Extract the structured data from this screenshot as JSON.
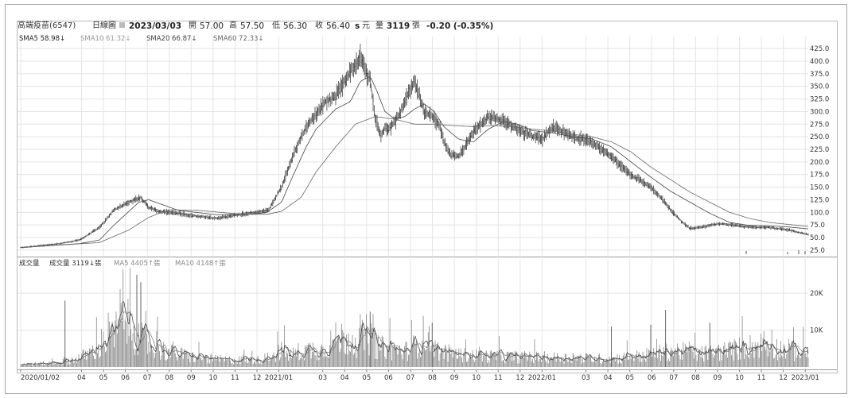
{
  "header": {
    "stock": "高端疫苗(6547)",
    "period": "日線圖",
    "date": "2023/03/03",
    "open_label": "開",
    "open": "57.00",
    "high_label": "高",
    "high": "57.50",
    "low_label": "低",
    "low": "56.30",
    "close_label": "收",
    "close": "56.40",
    "currency": "元",
    "volume_label": "量",
    "volume": "3119",
    "volume_unit": "張",
    "change": "-0.20 (-0.35%)"
  },
  "colors": {
    "sma5": "#222222",
    "sma10": "#999999",
    "sma20": "#444444",
    "sma60": "#666666",
    "candle": "#222222",
    "volume_bar": "#888888",
    "grid": "#e4e4e4"
  },
  "ma_legend": [
    {
      "label": "SMA5 58.98↓",
      "color": "#222222"
    },
    {
      "label": "SMA10 61.32↓",
      "color": "#999999"
    },
    {
      "label": "SMA20 66.87↓",
      "color": "#444444"
    },
    {
      "label": "SMA60 72.33↓",
      "color": "#666666"
    }
  ],
  "volume_legend": [
    {
      "label": "成交量",
      "color": "#333333"
    },
    {
      "label": "成交量 3119↓張",
      "color": "#333333"
    },
    {
      "label": "MA5 4405↑張",
      "color": "#888888"
    },
    {
      "label": "MA10 4148↑張",
      "color": "#888888"
    }
  ],
  "chart_data": [
    {
      "type": "line",
      "title": "",
      "ylim": [
        20,
        430
      ],
      "y_ticks": [
        "425.0",
        "400.0",
        "375.0",
        "350.0",
        "325.0",
        "300.0",
        "275.0",
        "250.0",
        "225.0",
        "200.0",
        "175.0",
        "150.0",
        "125.0",
        "100.0",
        "75.0",
        "50.0",
        "25.0"
      ],
      "y_tick_values": [
        425,
        400,
        375,
        350,
        325,
        300,
        275,
        250,
        225,
        200,
        175,
        150,
        125,
        100,
        75,
        50,
        25
      ],
      "x_labels": [
        "2020/01/02",
        "04",
        "05",
        "06",
        "07",
        "08",
        "09",
        "10",
        "11",
        "12",
        "2021/01",
        "03",
        "04",
        "05",
        "06",
        "07",
        "08",
        "09",
        "10",
        "11",
        "12",
        "2022/01",
        "03",
        "04",
        "05",
        "06",
        "07",
        "08",
        "09",
        "10",
        "11",
        "12",
        "2023/01"
      ],
      "x_label_pos": [
        0,
        61,
        83,
        105,
        127,
        149,
        171,
        193,
        215,
        237,
        259,
        303,
        325,
        347,
        369,
        391,
        413,
        435,
        457,
        479,
        501,
        523,
        567,
        589,
        611,
        633,
        655,
        677,
        699,
        721,
        743,
        765,
        787
      ],
      "grid": true,
      "total_days": 800,
      "price_series": {
        "name": "close",
        "x": [
          0,
          40,
          60,
          80,
          95,
          105,
          115,
          122,
          130,
          140,
          150,
          160,
          180,
          200,
          220,
          240,
          252,
          265,
          276,
          285,
          292,
          298,
          304,
          310,
          320,
          335,
          345,
          355,
          360,
          366,
          370,
          374,
          380,
          386,
          392,
          400,
          410,
          418,
          425,
          430,
          436,
          445,
          460,
          475,
          490,
          505,
          520,
          530,
          540,
          548,
          555,
          565,
          580,
          600,
          620,
          640,
          650,
          658,
          665,
          672,
          680,
          690,
          700,
          710,
          720,
          735,
          750,
          765,
          780,
          790,
          800
        ],
        "values": [
          30,
          38,
          45,
          70,
          105,
          115,
          125,
          130,
          110,
          102,
          100,
          98,
          92,
          88,
          95,
          100,
          105,
          150,
          210,
          250,
          275,
          290,
          305,
          320,
          330,
          380,
          410,
          360,
          290,
          250,
          270,
          265,
          280,
          300,
          330,
          360,
          300,
          290,
          275,
          240,
          215,
          210,
          260,
          290,
          280,
          265,
          250,
          245,
          270,
          262,
          255,
          248,
          240,
          210,
          175,
          150,
          130,
          110,
          95,
          80,
          68,
          70,
          74,
          78,
          75,
          72,
          70,
          69,
          65,
          60,
          56
        ]
      },
      "sma_series": [
        {
          "name": "SMA20",
          "x": [
            0,
            60,
            80,
            95,
            110,
            120,
            130,
            140,
            160,
            200,
            240,
            250,
            265,
            276,
            290,
            300,
            310,
            320,
            335,
            345,
            355,
            362,
            370,
            380,
            390,
            400,
            410,
            420,
            430,
            445,
            460,
            475,
            490,
            505,
            520,
            540,
            560,
            580,
            600,
            620,
            640,
            660,
            680,
            700,
            720,
            740,
            760,
            780,
            800
          ],
          "values": [
            30,
            38,
            45,
            75,
            102,
            120,
            125,
            118,
            104,
            95,
            97,
            100,
            120,
            170,
            230,
            265,
            285,
            305,
            320,
            360,
            370,
            340,
            300,
            285,
            290,
            305,
            315,
            300,
            270,
            245,
            240,
            265,
            280,
            275,
            262,
            258,
            250,
            246,
            230,
            200,
            170,
            142,
            120,
            98,
            80,
            74,
            73,
            71,
            67
          ]
        },
        {
          "name": "SMA60",
          "x": [
            0,
            80,
            110,
            130,
            150,
            180,
            220,
            250,
            265,
            285,
            300,
            320,
            340,
            360,
            380,
            400,
            420,
            440,
            460,
            480,
            500,
            520,
            540,
            560,
            580,
            600,
            620,
            640,
            660,
            680,
            700,
            720,
            740,
            760,
            780,
            800
          ],
          "values": [
            30,
            40,
            65,
            90,
            105,
            104,
            97,
            96,
            102,
            130,
            180,
            230,
            275,
            290,
            285,
            275,
            275,
            272,
            270,
            272,
            270,
            265,
            262,
            255,
            250,
            240,
            220,
            190,
            165,
            140,
            120,
            100,
            88,
            80,
            76,
            72
          ]
        }
      ]
    },
    {
      "type": "bar",
      "title": "成交量",
      "ylim": [
        0,
        28000
      ],
      "y_ticks": [
        "20K",
        "10K"
      ],
      "y_tick_values": [
        20000,
        10000
      ],
      "volume_profile": {
        "x": [
          0,
          20,
          40,
          60,
          75,
          85,
          95,
          100,
          105,
          110,
          115,
          120,
          130,
          140,
          150,
          160,
          170,
          180,
          200,
          220,
          240,
          250,
          260,
          265,
          270,
          275,
          280,
          290,
          300,
          305,
          310,
          315,
          320,
          330,
          340,
          345,
          350,
          355,
          360,
          365,
          370,
          380,
          390,
          400,
          405,
          410,
          415,
          420,
          430,
          440,
          450,
          470,
          490,
          510,
          530,
          550,
          570,
          590,
          610,
          630,
          645,
          655,
          665,
          675,
          685,
          700,
          720,
          740,
          750,
          760,
          770,
          780,
          790,
          800
        ],
        "values": [
          800,
          900,
          1200,
          2500,
          4500,
          6500,
          9000,
          10500,
          12000,
          11000,
          9500,
          8000,
          6000,
          5000,
          4000,
          3500,
          3000,
          2500,
          2000,
          1800,
          1900,
          2500,
          3500,
          4500,
          3500,
          3000,
          4000,
          4500,
          5000,
          4500,
          5500,
          6500,
          7500,
          8000,
          6500,
          7000,
          9000,
          8000,
          6000,
          5000,
          5500,
          4500,
          4200,
          5500,
          7000,
          9000,
          7000,
          5000,
          4000,
          3500,
          3200,
          3000,
          2800,
          2700,
          2600,
          2500,
          2400,
          2300,
          2500,
          3000,
          3500,
          4200,
          4500,
          4000,
          3500,
          3800,
          4500,
          5500,
          6000,
          5500,
          5000,
          4500,
          4000,
          3500
        ]
      },
      "spikes": [
        {
          "x": 45,
          "value": 18000
        },
        {
          "x": 118,
          "value": 25000
        },
        {
          "x": 122,
          "value": 23000
        },
        {
          "x": 355,
          "value": 15000
        },
        {
          "x": 418,
          "value": 12000
        },
        {
          "x": 600,
          "value": 11000
        },
        {
          "x": 640,
          "value": 11500
        },
        {
          "x": 655,
          "value": 15500
        },
        {
          "x": 700,
          "value": 12000
        }
      ]
    }
  ]
}
